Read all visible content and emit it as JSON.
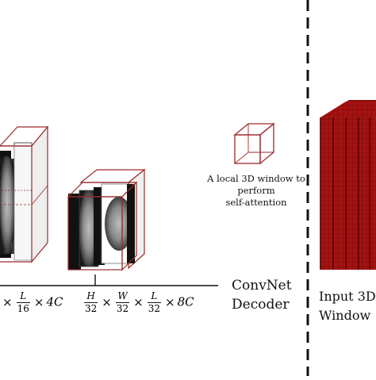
{
  "colors": {
    "cube_edge": "#9b2a2a",
    "input_volume": "#a51212",
    "input_volume_dark": "#6e0a0a",
    "divider": "#111111",
    "axis": "#111111"
  },
  "window_label": "A local 3D window to\nperform\nself-attention",
  "decoder_label": "ConvNet\nDecoder",
  "input_label": "Input 3D\nWindow",
  "formula_left": {
    "prefix": "×",
    "frac_num": "L",
    "frac_den": "16",
    "suffix_op": "×",
    "suffix": "4C"
  },
  "formula_right": {
    "frac1_num": "H",
    "frac1_den": "32",
    "frac2_num": "W",
    "frac2_den": "32",
    "frac3_num": "L",
    "frac3_den": "32",
    "op": "×",
    "suffix": "8C"
  },
  "icons": {
    "small_cube": "wireframe-cube-icon",
    "feature_block_left": "feature-map-stack",
    "feature_block_mid": "feature-map-stack",
    "input_volume": "voxel-volume"
  }
}
